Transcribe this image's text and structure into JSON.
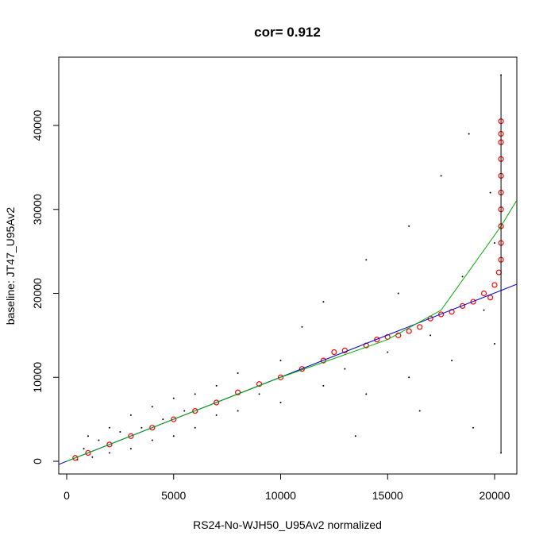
{
  "chart_data": {
    "type": "scatter",
    "title": "cor= 0.912",
    "x_label": "RS24-No-WJH50_U95Av2 normalized",
    "y_label": "baseline: JT47_U95Av2",
    "xlim": [
      -371,
      21039
    ],
    "ylim": [
      -1513,
      48132
    ],
    "xticks": [
      0,
      5000,
      10000,
      15000,
      20000
    ],
    "yticks": [
      0,
      10000,
      20000,
      30000,
      40000
    ],
    "series": [
      {
        "color": "#000000",
        "marker": "dot",
        "x": [
          500,
          800,
          1000,
          1200,
          1500,
          2000,
          2000,
          2500,
          3000,
          3000,
          3500,
          4000,
          4000,
          4500,
          5000,
          5000,
          5500,
          6000,
          6000,
          7000,
          7000,
          8000,
          8000,
          9000,
          10000,
          10000,
          11000,
          12000,
          12000,
          13000,
          14000,
          14000,
          15000,
          16000,
          16000,
          17000,
          17500,
          18000,
          18500,
          19000,
          19500,
          20000,
          20000,
          20300,
          20300,
          19800,
          16500,
          15500,
          13500,
          18800
        ],
        "values": [
          200,
          1500,
          3000,
          500,
          2500,
          4000,
          1000,
          3500,
          5500,
          1500,
          4000,
          6500,
          2500,
          5000,
          7500,
          3000,
          6000,
          8000,
          4000,
          9000,
          5500,
          10500,
          6000,
          8000,
          12000,
          7000,
          16000,
          9000,
          19000,
          11000,
          24000,
          8000,
          13000,
          28000,
          10000,
          15000,
          34000,
          12000,
          22000,
          4000,
          18000,
          26000,
          14000,
          46000,
          1000,
          32000,
          6000,
          20000,
          3000,
          39000
        ]
      },
      {
        "color": "#ff0000",
        "marker": "circle",
        "x": [
          400,
          1000,
          2000,
          3000,
          4000,
          5000,
          6000,
          7000,
          8000,
          9000,
          10000,
          11000,
          12000,
          12500,
          13000,
          14000,
          14500,
          15000,
          15500,
          16000,
          16500,
          17000,
          17500,
          18000,
          18500,
          19000,
          19500,
          20000,
          20200,
          20300,
          20300,
          20300,
          20300,
          20300,
          20300,
          20300,
          20300,
          20300,
          20300,
          19800
        ],
        "values": [
          400,
          1000,
          2000,
          3000,
          4000,
          5000,
          6000,
          7000,
          8200,
          9200,
          10000,
          11000,
          12000,
          13000,
          13200,
          13800,
          14500,
          14800,
          15000,
          15500,
          16000,
          17000,
          17500,
          17800,
          18500,
          19000,
          20000,
          21000,
          22500,
          24000,
          26000,
          28000,
          30000,
          32000,
          34000,
          36000,
          38000,
          40500,
          39000,
          19500
        ]
      }
    ],
    "lines": [
      {
        "color": "#0000cc",
        "x": [
          -371,
          21039
        ],
        "values": [
          -370,
          21087
        ]
      },
      {
        "color": "#00aa00",
        "x": [
          0,
          10000,
          15000,
          17500,
          20300,
          21039
        ],
        "values": [
          0,
          10000,
          14500,
          18000,
          28000,
          31100
        ]
      },
      {
        "color": "#000000",
        "x": [
          20300,
          20300
        ],
        "values": [
          1000,
          46000
        ]
      }
    ]
  }
}
